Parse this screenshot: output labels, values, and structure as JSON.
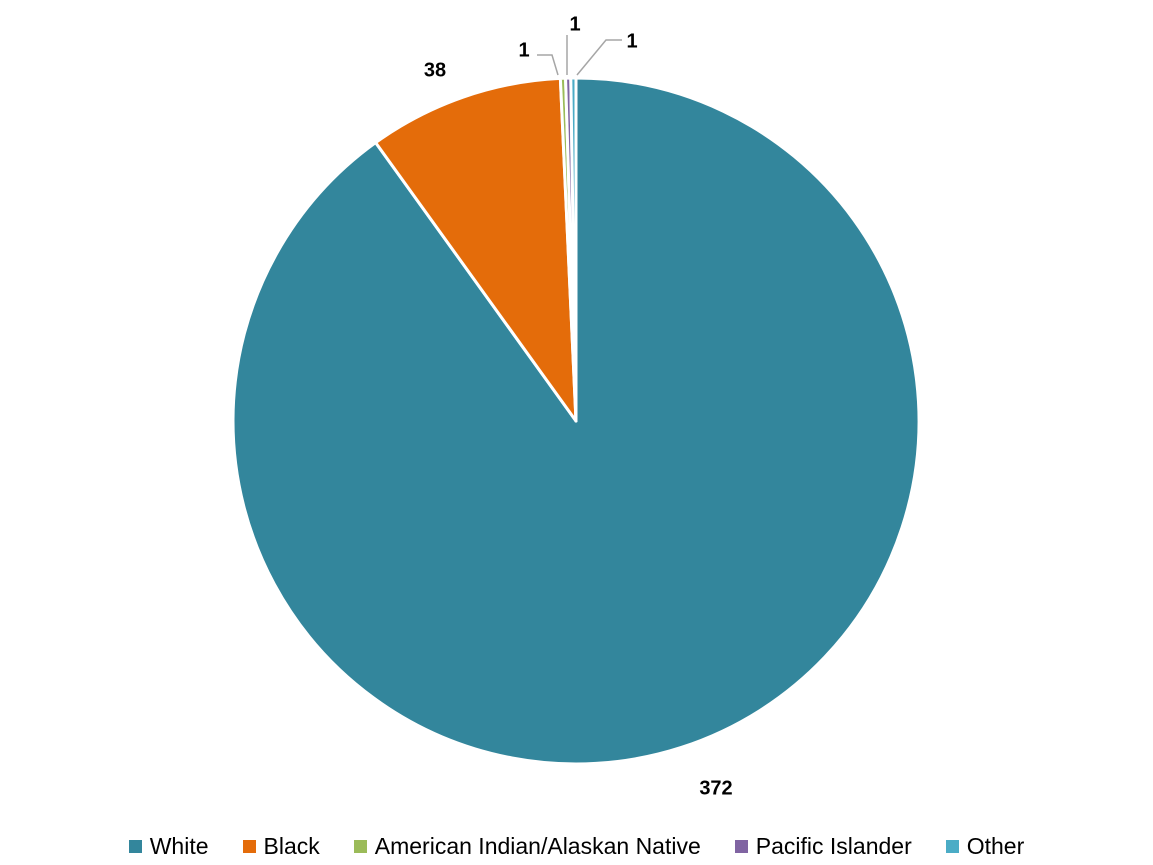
{
  "chart_data": {
    "type": "pie",
    "categories": [
      "White",
      "Black",
      "American Indian/Alaskan Native",
      "Pacific Islander",
      "Other"
    ],
    "values": [
      372,
      38,
      1,
      1,
      1
    ],
    "data_labels": [
      "372",
      "38",
      "1",
      "1",
      "1"
    ],
    "colors": [
      "#33869C",
      "#E46C0A",
      "#9BBB59",
      "#8064A2",
      "#4BACC6"
    ],
    "legend_position": "bottom",
    "start_angle": "12 o'clock",
    "direction": "clockwise"
  }
}
